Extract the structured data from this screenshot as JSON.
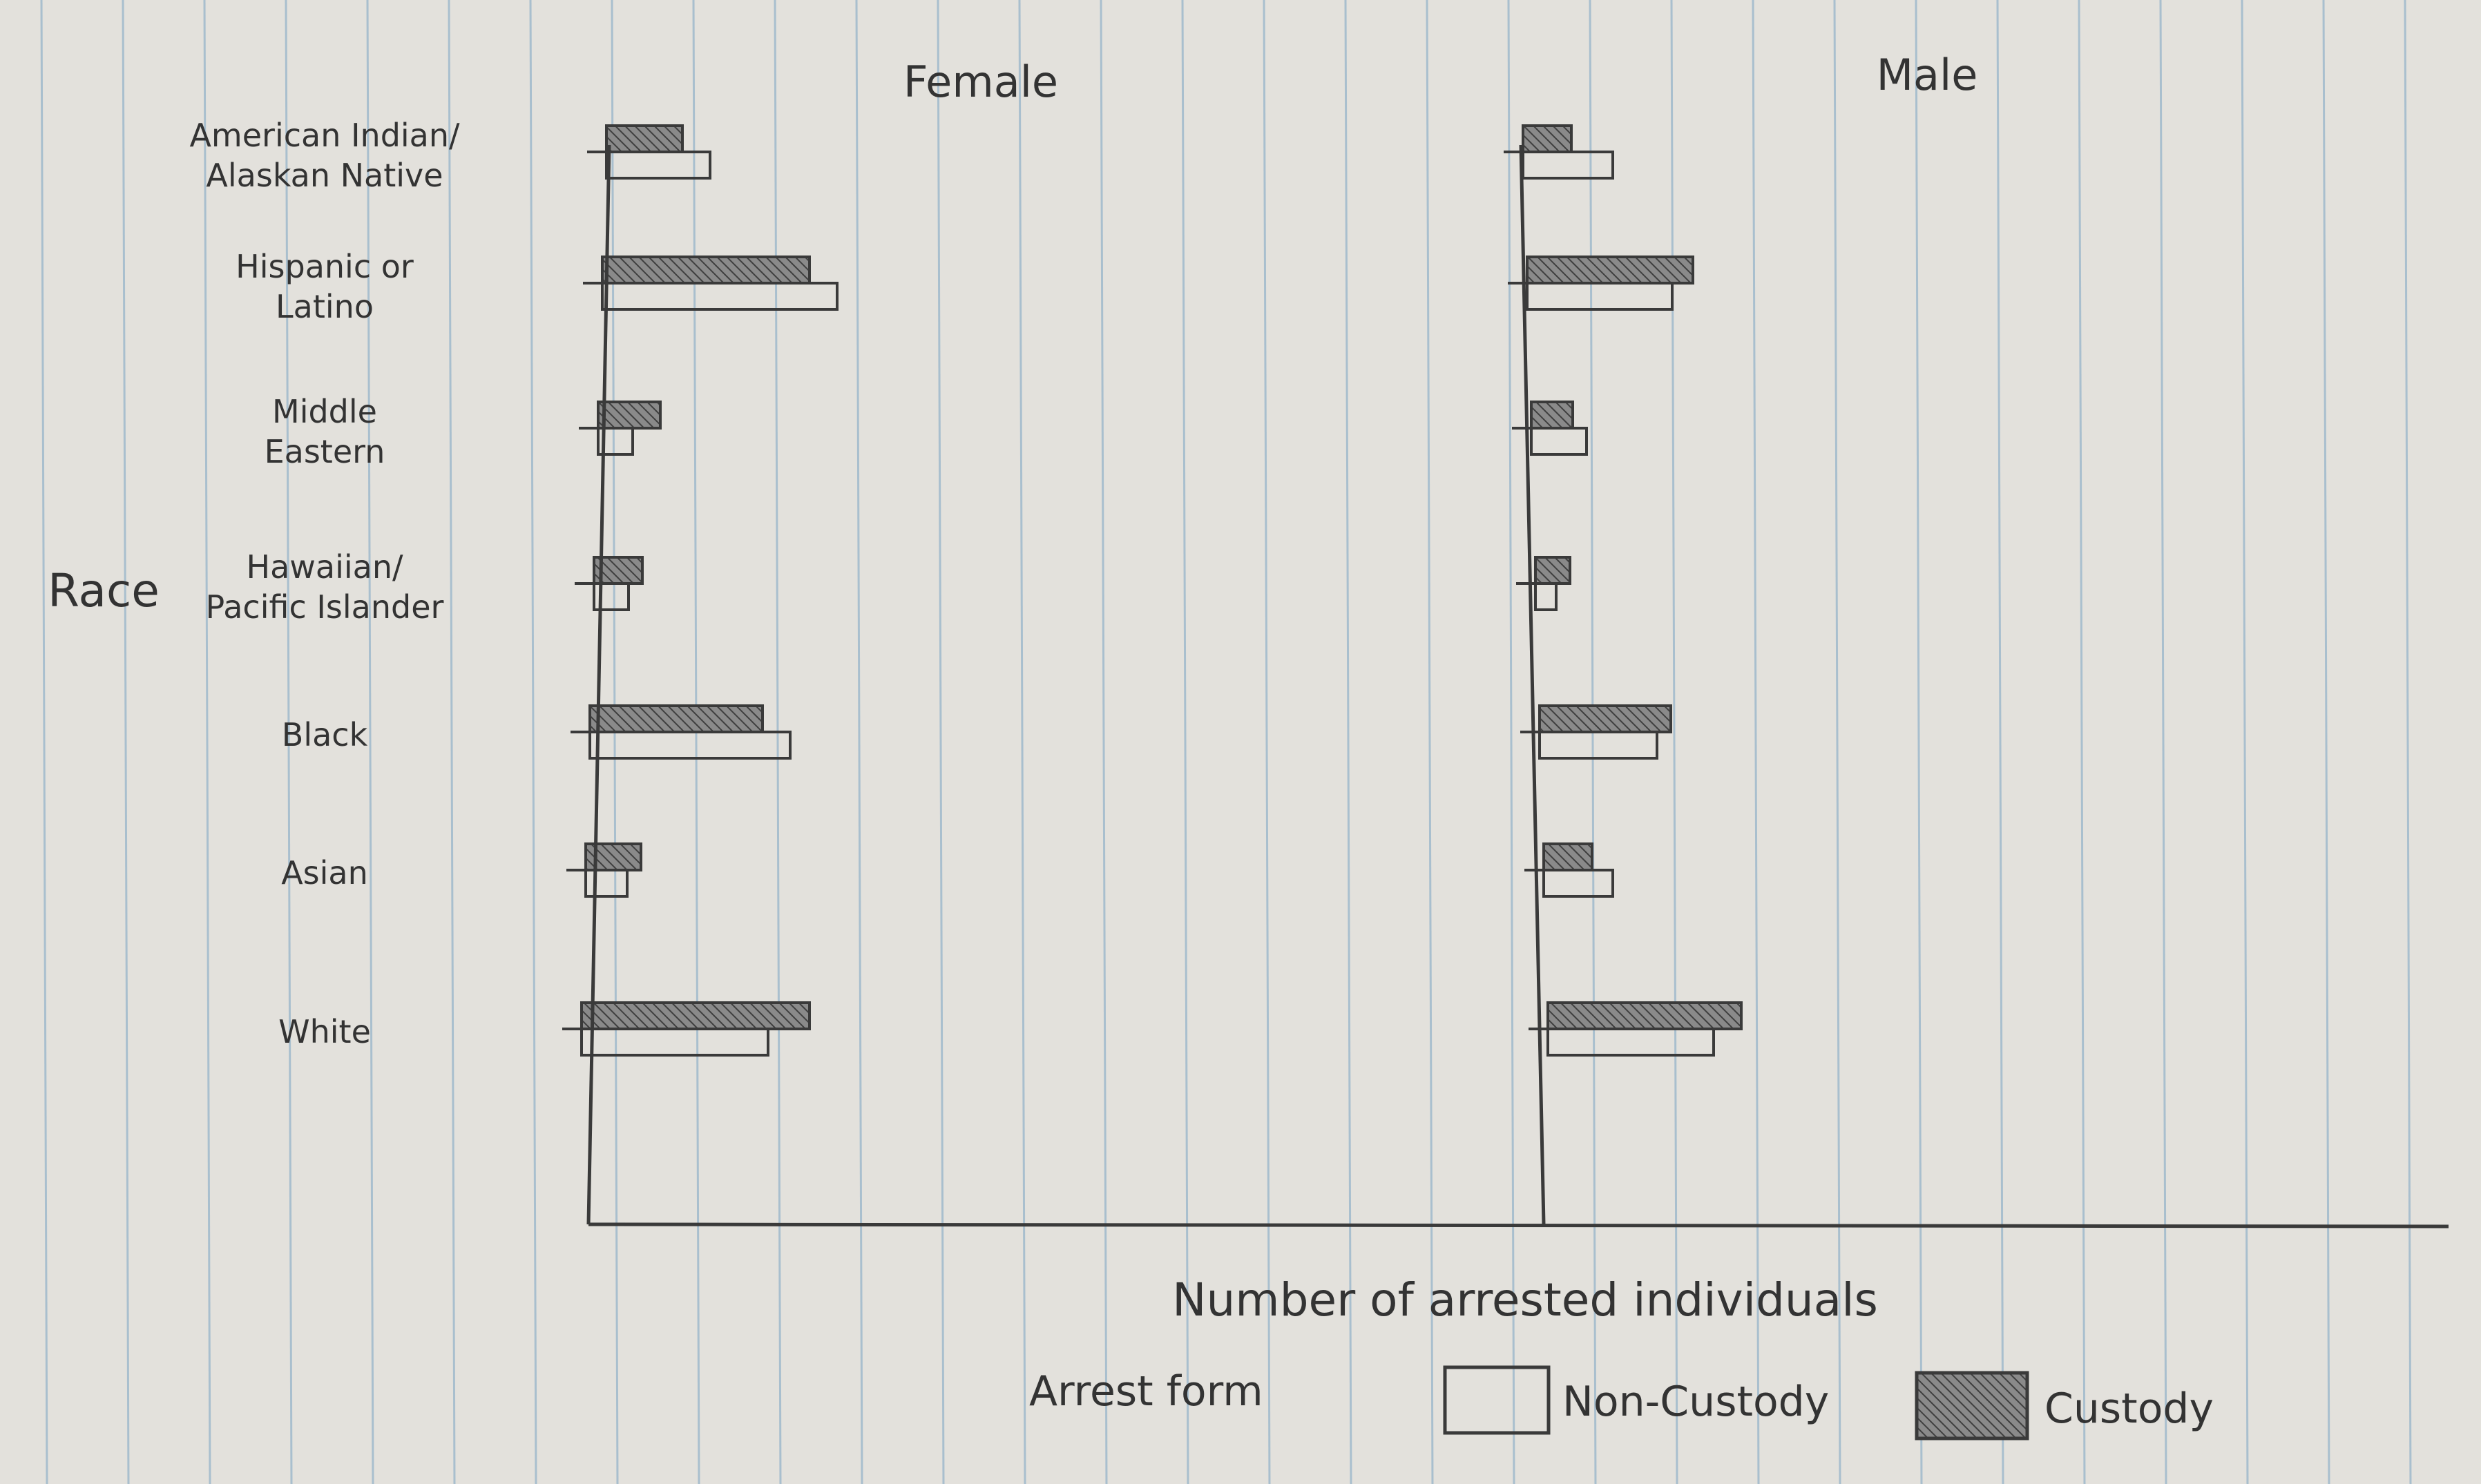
{
  "chart_data": {
    "type": "bar",
    "orientation": "horizontal",
    "facets": [
      "Female",
      "Male"
    ],
    "ylabel": "Race",
    "xlabel": "Number of arrested individuals",
    "categories": [
      [
        "American Indian/",
        "Alaskan Native"
      ],
      [
        "Hispanic or",
        "Latino"
      ],
      [
        "Middle",
        "Eastern"
      ],
      [
        "Hawaiian/",
        "Pacific Islander"
      ],
      [
        "Black"
      ],
      [
        "Asian"
      ],
      [
        "White"
      ]
    ],
    "legend": {
      "title": "Arrest form",
      "placement": "bottom",
      "entries": [
        {
          "name": "Non-Custody",
          "style": "outline"
        },
        {
          "name": "Custody",
          "style": "hatched"
        }
      ]
    },
    "panels": [
      {
        "facet": "Female",
        "series": [
          {
            "name": "Custody",
            "values": [
              11,
              30,
              9,
              7,
              25,
              8,
              33
            ]
          },
          {
            "name": "Non-Custody",
            "values": [
              15,
              34,
              5,
              5,
              29,
              6,
              27
            ]
          }
        ]
      },
      {
        "facet": "Male",
        "series": [
          {
            "name": "Custody",
            "values": [
              7,
              24,
              6,
              5,
              19,
              7,
              28
            ]
          },
          {
            "name": "Non-Custody",
            "values": [
              13,
              21,
              8,
              3,
              17,
              10,
              24
            ]
          }
        ]
      }
    ],
    "xlim": [
      0,
      135
    ],
    "grid": false,
    "colors": {
      "paper": "#e3e1dc",
      "rule": "#a9bfce",
      "pencil": "#3a3a3a",
      "hatch": "#6f6f6f"
    }
  }
}
